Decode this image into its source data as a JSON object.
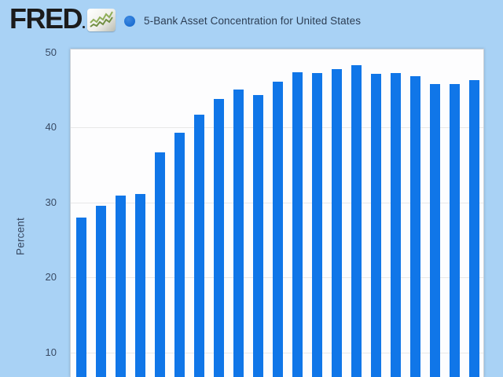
{
  "page": {
    "background_color": "#a9d2f5"
  },
  "header": {
    "logo_text": "FRED",
    "logo_icon": "fred-line-chart-icon",
    "legend_marker_color": "#1d6fd2",
    "series_title": "5-Bank Asset Concentration for United States"
  },
  "chart_data": {
    "type": "bar",
    "title": "5-Bank Asset Concentration for United States",
    "xlabel": "",
    "ylabel": "Percent",
    "y_ticks": [
      50,
      40,
      30,
      20,
      10
    ],
    "grid": true,
    "legend_position": "top-left",
    "x_axis_labels_visible": false,
    "viewport_note": "bottom of plot (x axis) cut off at image edge",
    "bar_color": "#1076e8",
    "values": [
      28.0,
      29.5,
      30.9,
      31.1,
      36.7,
      39.3,
      41.7,
      43.8,
      45.0,
      44.3,
      46.1,
      47.3,
      47.2,
      47.7,
      48.3,
      47.1,
      47.2,
      46.8,
      45.8,
      45.8,
      46.3
    ]
  }
}
